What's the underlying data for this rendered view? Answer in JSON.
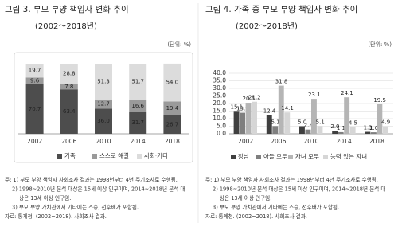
{
  "chart_data": [
    {
      "type": "bar",
      "stacked": true,
      "title": "그림 3. 부모 부양 책임자 변화 추이",
      "subtitle": "(2002～2018년)",
      "unit": "(단위: %)",
      "categories": [
        "2002",
        "2006",
        "2010",
        "2014",
        "2018"
      ],
      "ylim": [
        0,
        100
      ],
      "series": [
        {
          "name": "가족",
          "color": "#4d4d4d",
          "label_color": "#ffffff",
          "values": [
            70.7,
            63.4,
            36.0,
            31.7,
            26.7
          ],
          "value_labels": [
            "70.7",
            "63.4",
            "36.0",
            "31.7",
            "26.7"
          ]
        },
        {
          "name": "스스로 해결",
          "color": "#9a9a9a",
          "label_color": "#ffffff",
          "values": [
            9.6,
            7.8,
            12.7,
            16.6,
            19.4
          ],
          "value_labels": [
            "9.6",
            "7.8",
            "12.7",
            "16.6",
            "19.4"
          ]
        },
        {
          "name": "사회·기타",
          "color": "#dcdcdc",
          "label_color": "#111111",
          "values": [
            19.7,
            28.8,
            51.3,
            51.7,
            54.0
          ],
          "value_labels": [
            "19.7",
            "28.8",
            "51.3",
            "51.7",
            "54.0"
          ]
        }
      ],
      "notes": [
        "주: 1) 부모 부양 책임자 사회조사 결과는 1998년부터 4년 주기조사로 수행됨.",
        "2) 1998~2010년 분석 대상은 15세 이상 인구이며, 2014~2018년 분석 대",
        "상은 13세 이상 인구임.",
        "3) 부모 부양 가치관에서 기타에는 스승, 선후배가 포함됨.",
        "자료: 통계청. (2002~2018). 사회조사 결과."
      ]
    },
    {
      "type": "bar",
      "stacked": false,
      "title": "그림 4. 가족 중 부모 부양 책임자 변화 추이",
      "subtitle": "(2002～2018년)",
      "unit": "(단위: %)",
      "categories": [
        "2002",
        "2006",
        "2010",
        "2014",
        "2018"
      ],
      "ylim": [
        0,
        40
      ],
      "yticks": [
        {
          "value": 0,
          "label": "0.0"
        },
        {
          "value": 5,
          "label": "5.0"
        },
        {
          "value": 10,
          "label": "10.0"
        },
        {
          "value": 15,
          "label": "15.0"
        },
        {
          "value": 20,
          "label": "20.0"
        },
        {
          "value": 25,
          "label": "25.0"
        },
        {
          "value": 30,
          "label": "30.0"
        },
        {
          "value": 35,
          "label": "35.0"
        },
        {
          "value": 40,
          "label": "40.0"
        }
      ],
      "grid": true,
      "series": [
        {
          "name": "장남",
          "color": "#3f3f3f",
          "values": [
            15.1,
            12.4,
            5.0,
            2.0,
            1.3
          ],
          "value_labels": [
            "15.1",
            "12.4",
            "5.0",
            "2.0",
            "1.3"
          ]
        },
        {
          "name": "아들 모두",
          "color": "#7f7f7f",
          "values": [
            13.9,
            5.1,
            2.8,
            1.1,
            1.0
          ],
          "value_labels": [
            "13.9",
            "5.1",
            "2.8",
            "1.1",
            "1.0"
          ]
        },
        {
          "name": "자녀 모두",
          "color": "#b5b5b5",
          "values": [
            20.5,
            31.8,
            23.1,
            24.1,
            19.5
          ],
          "value_labels": [
            "20.5",
            "31.8",
            "23.1",
            "24.1",
            "19.5"
          ]
        },
        {
          "name": "능력 있는 자녀",
          "color": "#d6d6d6",
          "values": [
            21.2,
            14.1,
            5.1,
            4.5,
            4.9
          ],
          "value_labels": [
            "21.2",
            "14.1",
            "5.1",
            "4.5",
            "4.9"
          ]
        }
      ],
      "notes": [
        "주: 1) 부모 부양 책임자 사회조사 결과는 1998년부터 4년 주기조사로 수행됨.",
        "2) 1998~2010년 분석 대상은 15세 이상 인구이며, 2014~2018년 분석 대",
        "상은 13세 이상 인구임.",
        "3) 부모 부양 가치관에서 기타에는 스승, 선후배가 포함됨.",
        "자료: 통계청. (2002~2018). 사회조사 결과."
      ]
    }
  ]
}
